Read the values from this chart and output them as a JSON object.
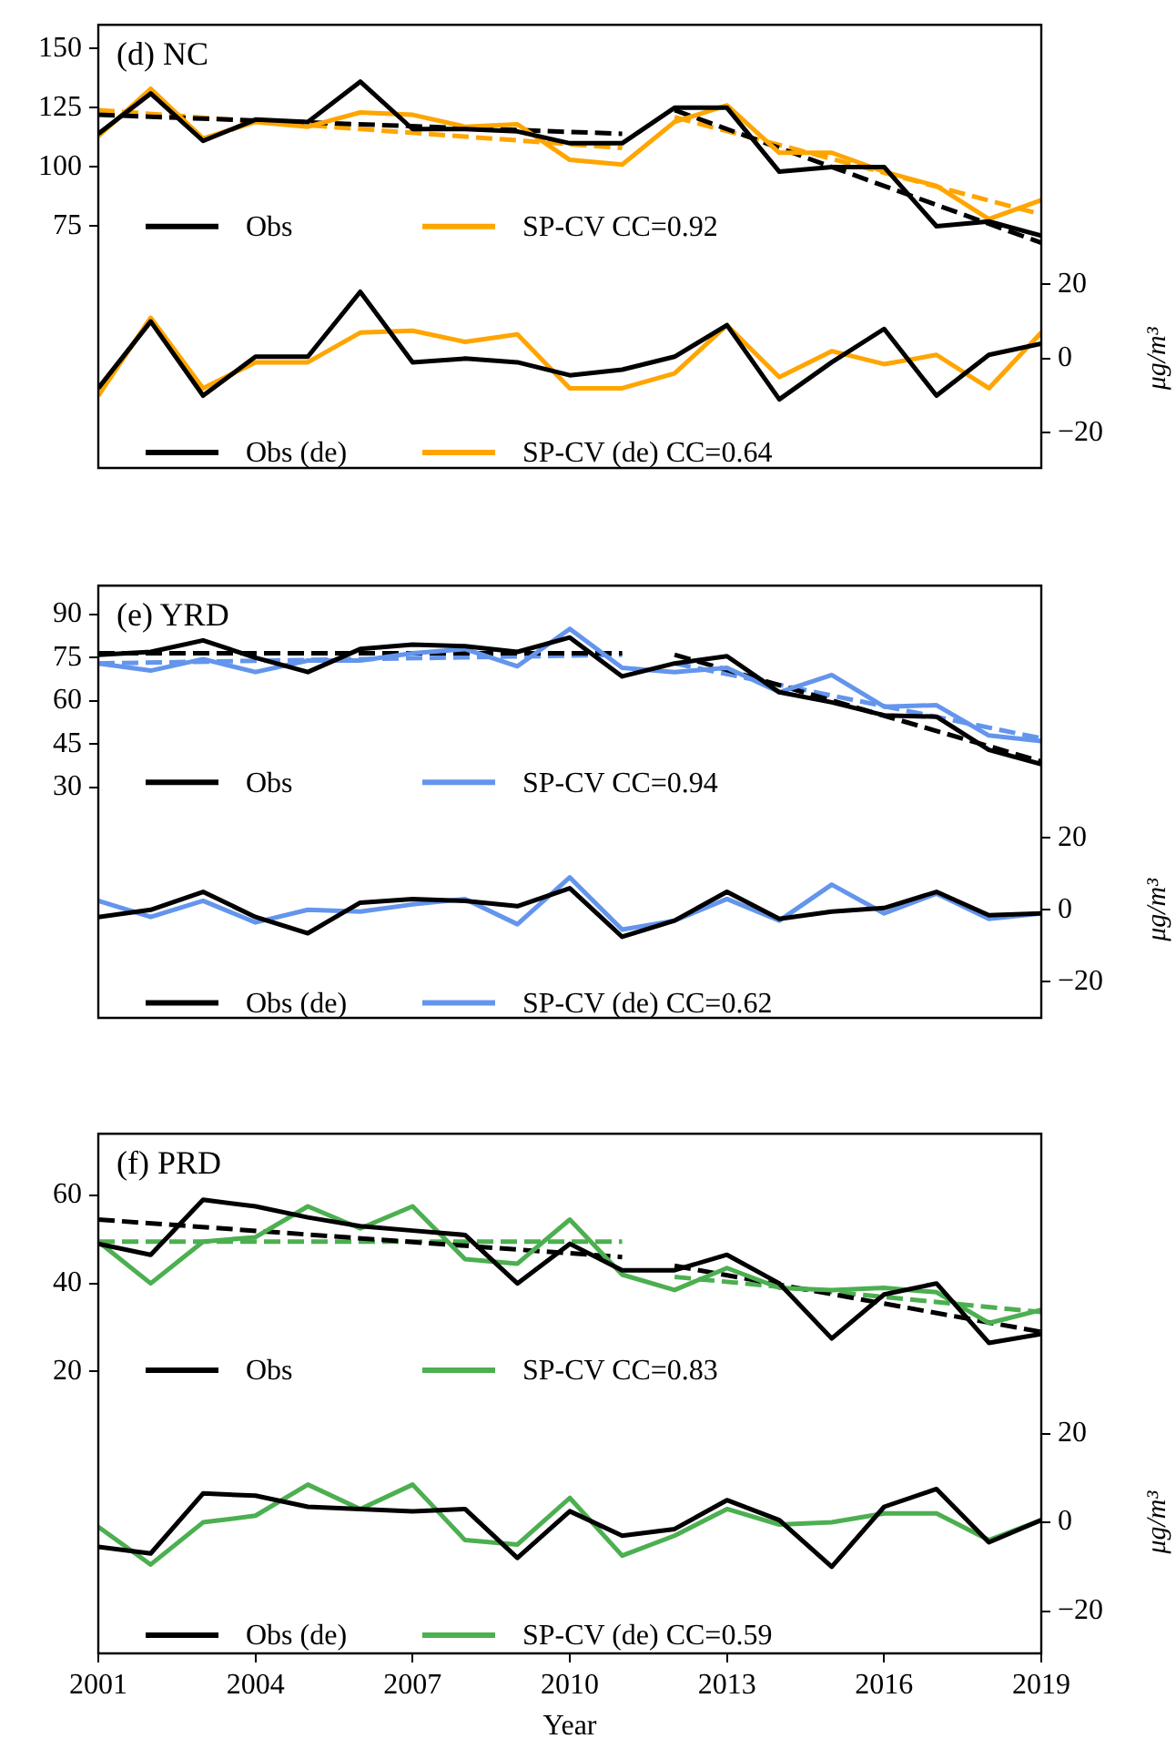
{
  "chart_data": [
    {
      "type": "line",
      "title": "(d) NC",
      "y2label": "μg/m³",
      "x": [
        2001,
        2002,
        2003,
        2004,
        2005,
        2006,
        2007,
        2008,
        2009,
        2010,
        2011,
        2012,
        2013,
        2014,
        2015,
        2016,
        2017,
        2018,
        2019
      ],
      "xlim": [
        2001,
        2019
      ],
      "xticks": [
        2001,
        2004,
        2007,
        2010,
        2013,
        2016,
        2019
      ],
      "ylim": [
        -27,
        160
      ],
      "yticks": [
        75,
        100,
        125,
        150
      ],
      "y2lim": [
        -29.5,
        90
      ],
      "y2ticks": [
        -20,
        0,
        20
      ],
      "tick_labels": "y",
      "legend": "bottom left",
      "marker": "none",
      "line_style": "solid",
      "series": [
        {
          "name": "Obs",
          "color": "#000000",
          "values": [
            114,
            131,
            111,
            120,
            119,
            136,
            116,
            116,
            115,
            110,
            110,
            125,
            125,
            98,
            100,
            100,
            75,
            77,
            71
          ]
        },
        {
          "name": "SP-CV CC=0.92",
          "color": "#ffa500",
          "values": [
            113,
            133,
            112,
            119,
            117,
            123,
            122,
            117,
            118,
            103,
            101,
            119,
            126,
            106,
            106,
            98,
            92,
            78,
            86
          ]
        },
        {
          "type": "line",
          "color": "#000000",
          "line_style": "dashed",
          "x": [
            2001,
            2011
          ],
          "values": [
            122,
            114
          ]
        },
        {
          "type": "line",
          "color": "#000000",
          "line_style": "dashed",
          "x": [
            2012,
            2019
          ],
          "values": [
            124,
            68
          ]
        },
        {
          "type": "line",
          "color": "#ffa500",
          "line_style": "dashed",
          "x": [
            2001,
            2011
          ],
          "values": [
            124,
            108
          ]
        },
        {
          "type": "line",
          "color": "#ffa500",
          "line_style": "dashed",
          "x": [
            2012,
            2019
          ],
          "values": [
            121,
            80
          ]
        },
        {
          "name": "Obs (de)",
          "color": "#000000",
          "axis": "y2",
          "values": [
            -8,
            10,
            -10,
            0.5,
            0.5,
            18,
            -1,
            0,
            -1,
            -4.5,
            -3,
            0.5,
            9,
            -11,
            -1,
            8,
            -10,
            1,
            4
          ]
        },
        {
          "name": "SP-CV (de) CC=0.64",
          "color": "#ffa500",
          "axis": "y2",
          "values": [
            -10,
            11,
            -8,
            -1,
            -1,
            7,
            7.5,
            4.5,
            6.5,
            -8,
            -8,
            -4,
            9,
            -5,
            2,
            -1.5,
            1,
            -8,
            7
          ]
        }
      ]
    },
    {
      "type": "line",
      "title": "(e) YRD",
      "y2label": "μg/m³",
      "x": [
        2001,
        2002,
        2003,
        2004,
        2005,
        2006,
        2007,
        2008,
        2009,
        2010,
        2011,
        2012,
        2013,
        2014,
        2015,
        2016,
        2017,
        2018,
        2019
      ],
      "xlim": [
        2001,
        2019
      ],
      "xticks": [
        2001,
        2004,
        2007,
        2010,
        2013,
        2016,
        2019
      ],
      "ylim": [
        -50,
        100
      ],
      "yticks": [
        30,
        45,
        60,
        75,
        90
      ],
      "y2lim": [
        -30,
        90
      ],
      "y2ticks": [
        -20,
        0,
        20
      ],
      "tick_labels": "y",
      "legend": "bottom left",
      "marker": "none",
      "line_style": "solid",
      "series": [
        {
          "name": "Obs",
          "color": "#000000",
          "values": [
            76,
            77,
            81,
            75,
            70,
            78,
            79.5,
            79,
            77,
            82,
            68.5,
            73,
            75.5,
            63,
            59.5,
            55,
            54.5,
            43,
            38
          ]
        },
        {
          "name": "SP-CV CC=0.94",
          "color": "#6495ed",
          "values": [
            73,
            70.5,
            74.5,
            70,
            74,
            74,
            76.5,
            78,
            72,
            85,
            71.5,
            70,
            71.5,
            63,
            69,
            58,
            58.5,
            48,
            46
          ]
        },
        {
          "type": "line",
          "color": "#000000",
          "line_style": "dashed",
          "x": [
            2001,
            2011
          ],
          "values": [
            76.5,
            76.5
          ]
        },
        {
          "type": "line",
          "color": "#000000",
          "line_style": "dashed",
          "x": [
            2012,
            2019
          ],
          "values": [
            76,
            39
          ]
        },
        {
          "type": "line",
          "color": "#6495ed",
          "line_style": "dashed",
          "x": [
            2001,
            2011
          ],
          "values": [
            73,
            76
          ]
        },
        {
          "type": "line",
          "color": "#6495ed",
          "line_style": "dashed",
          "x": [
            2012,
            2019
          ],
          "values": [
            73,
            47
          ]
        },
        {
          "name": "Obs (de)",
          "color": "#000000",
          "axis": "y2",
          "values": [
            -2,
            0,
            5,
            -2,
            -6.5,
            2,
            3,
            2.5,
            1,
            6,
            -7.5,
            -3,
            5,
            -2.5,
            -0.5,
            0.5,
            5,
            -1.5,
            -1
          ]
        },
        {
          "name": "SP-CV (de) CC=0.62",
          "color": "#6495ed",
          "axis": "y2",
          "values": [
            2.5,
            -2,
            2.5,
            -3.5,
            0,
            -0.5,
            1.5,
            3,
            -4,
            9,
            -5.5,
            -3,
            3,
            -3,
            7,
            -1,
            4.5,
            -2.5,
            -1
          ]
        }
      ]
    },
    {
      "type": "line",
      "title": "(f) PRD",
      "xlabel": "Year",
      "y2label": "μg/m³",
      "x": [
        2001,
        2002,
        2003,
        2004,
        2005,
        2006,
        2007,
        2008,
        2009,
        2010,
        2011,
        2012,
        2013,
        2014,
        2015,
        2016,
        2017,
        2018,
        2019
      ],
      "xlim": [
        2001,
        2019
      ],
      "xticks": [
        2001,
        2004,
        2007,
        2010,
        2013,
        2016,
        2019
      ],
      "ylim": [
        -44,
        74
      ],
      "yticks": [
        20,
        40,
        60
      ],
      "y2lim": [
        -29.5,
        87.5
      ],
      "y2ticks": [
        -20,
        0,
        20
      ],
      "legend": "bottom left",
      "marker": "none",
      "line_style": "solid",
      "series": [
        {
          "name": "Obs",
          "color": "#000000",
          "values": [
            49,
            46.5,
            59,
            57.5,
            55,
            53,
            52,
            51,
            40,
            49,
            43,
            43,
            46.5,
            40,
            27.5,
            37.5,
            40,
            26.5,
            28.5
          ]
        },
        {
          "name": "SP-CV CC=0.83",
          "color": "#4caf50",
          "values": [
            49.5,
            40,
            49.5,
            50.5,
            57.5,
            52.5,
            57.5,
            45.5,
            44.5,
            54.5,
            42,
            38.5,
            43.5,
            39,
            38.5,
            39,
            38,
            31,
            34
          ]
        },
        {
          "type": "line",
          "color": "#000000",
          "line_style": "dashed",
          "x": [
            2001,
            2011
          ],
          "values": [
            54.5,
            46
          ]
        },
        {
          "type": "line",
          "color": "#000000",
          "line_style": "dashed",
          "x": [
            2012,
            2019
          ],
          "values": [
            44,
            29
          ]
        },
        {
          "type": "line",
          "color": "#4caf50",
          "line_style": "dashed",
          "x": [
            2001,
            2011
          ],
          "values": [
            49.5,
            49.5
          ]
        },
        {
          "type": "line",
          "color": "#4caf50",
          "line_style": "dashed",
          "x": [
            2012,
            2019
          ],
          "values": [
            41.5,
            33.5
          ]
        },
        {
          "name": "Obs (de)",
          "color": "#000000",
          "axis": "y2",
          "values": [
            -5.5,
            -7,
            6.5,
            6,
            3.5,
            3,
            2.5,
            3,
            -8,
            2.5,
            -3,
            -1.5,
            5,
            0.5,
            -10,
            3.5,
            7.5,
            -4.5,
            0.5
          ]
        },
        {
          "name": "SP-CV (de) CC=0.59",
          "color": "#4caf50",
          "axis": "y2",
          "values": [
            -1,
            -9.5,
            0,
            1.5,
            8.5,
            3,
            8.5,
            -4,
            -5,
            5.5,
            -7.5,
            -3,
            3,
            -0.5,
            0,
            2,
            2,
            -4,
            0.5
          ]
        }
      ]
    }
  ]
}
